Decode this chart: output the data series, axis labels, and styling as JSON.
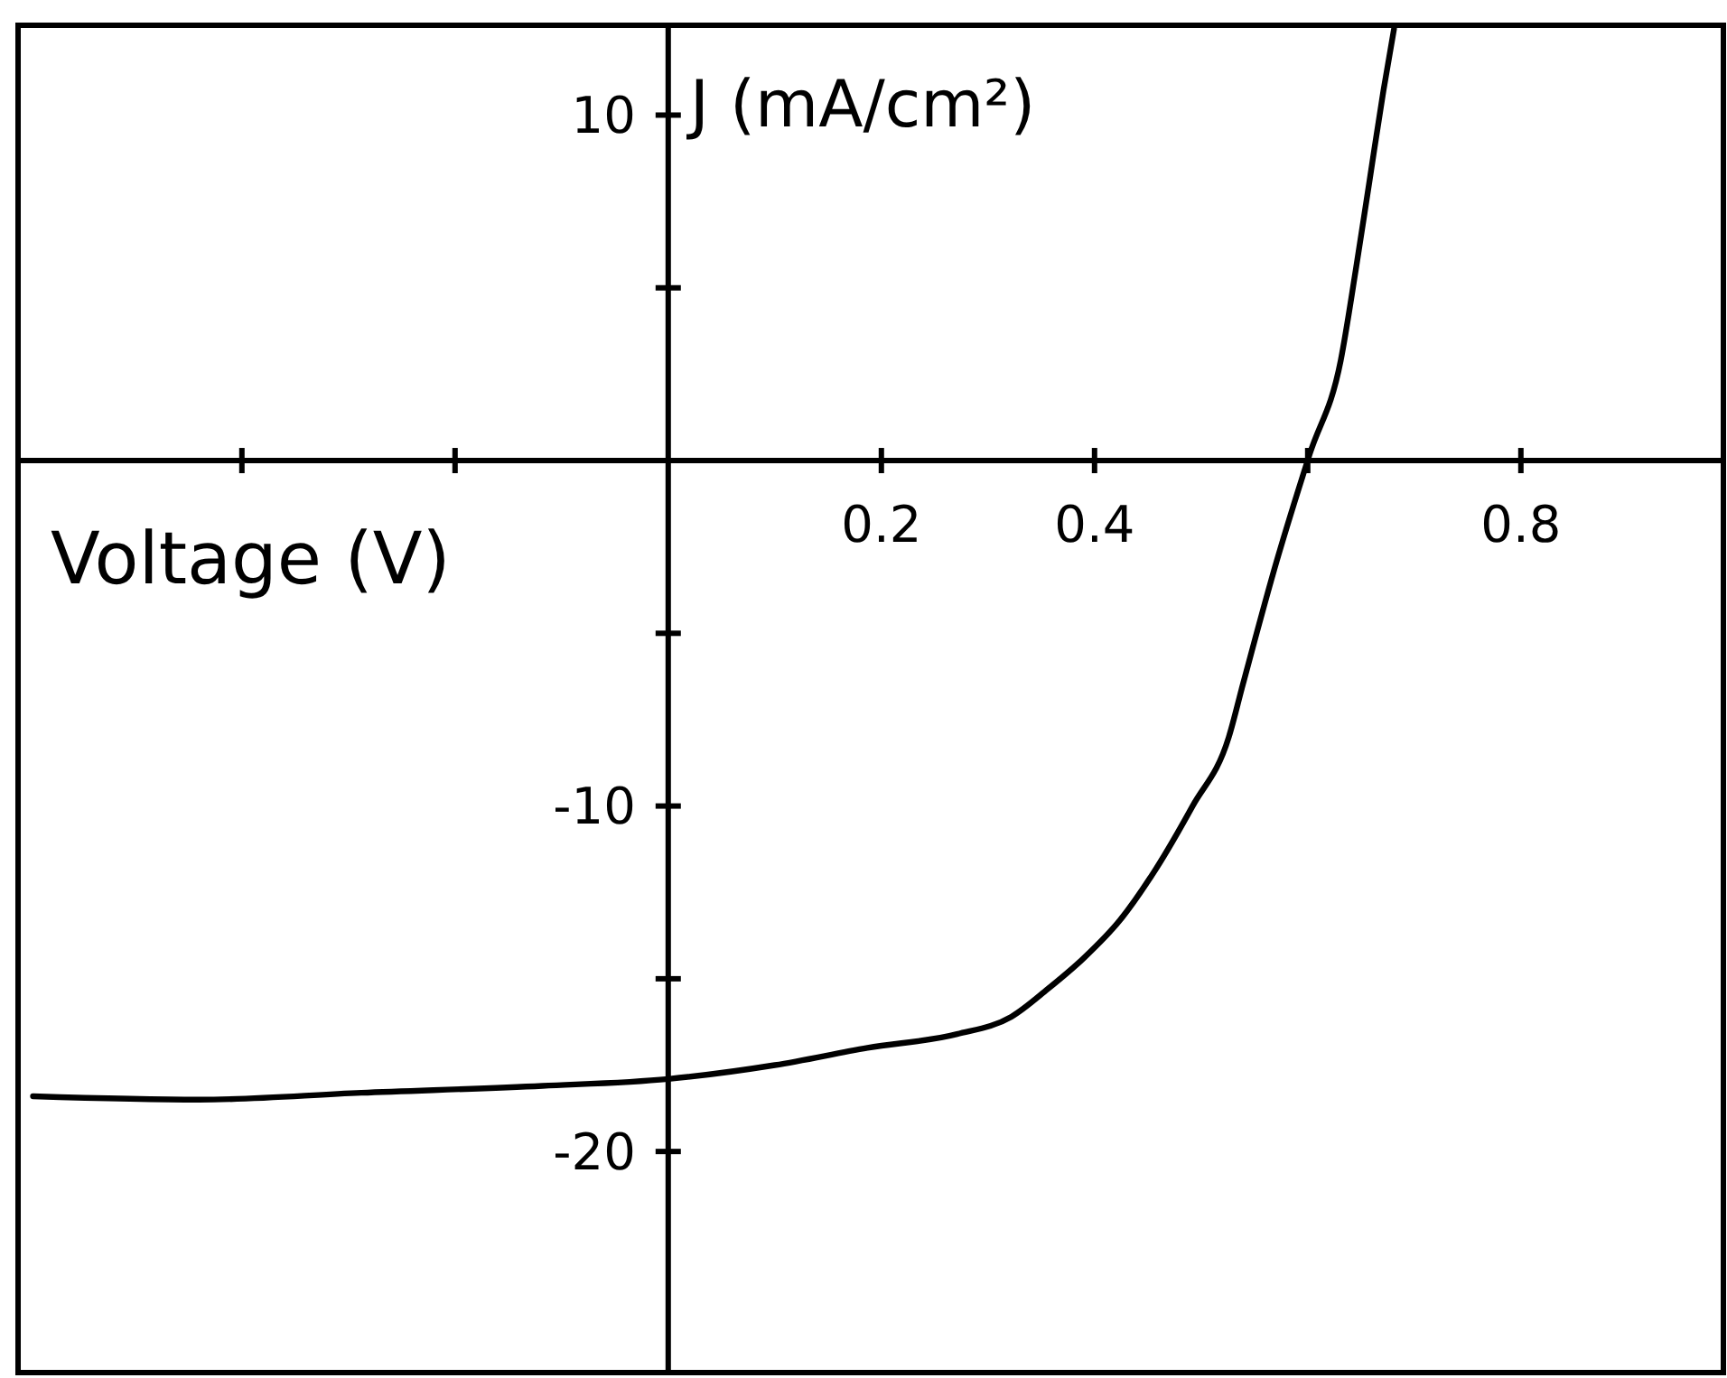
{
  "chart_data": {
    "type": "line",
    "xlabel": "Voltage (V)",
    "ylabel": "J (mA/cm²)",
    "x": [
      -0.596,
      -0.44,
      -0.288,
      -0.118,
      0,
      0.1,
      0.187,
      0.271,
      0.322,
      0.356,
      0.39,
      0.424,
      0.458,
      0.492,
      0.526,
      0.539,
      0.571,
      0.602,
      0.631,
      0.645,
      0.658,
      0.671,
      0.681
    ],
    "values": [
      -18.4,
      -18.5,
      -18.3,
      -18.1,
      -17.9,
      -17.5,
      -17.0,
      -16.6,
      -16.1,
      -15.3,
      -14.4,
      -13.3,
      -11.8,
      -10.0,
      -8.0,
      -6.5,
      -2.9,
      0.2,
      2.9,
      5.5,
      8.1,
      10.7,
      12.5
    ],
    "color": "#000000",
    "xlim": [
      -0.61,
      0.99
    ],
    "ylim": [
      -26.4,
      12.6
    ],
    "xticks": [
      {
        "value": -0.4,
        "label": null
      },
      {
        "value": -0.2,
        "label": null
      },
      0.2,
      0.4,
      {
        "value": 0.6,
        "label": null
      },
      0.8
    ],
    "yticks": [
      10,
      {
        "value": 5,
        "label": null
      },
      {
        "value": -5,
        "label": null
      },
      -10,
      {
        "value": -15,
        "label": null
      },
      -20
    ]
  }
}
